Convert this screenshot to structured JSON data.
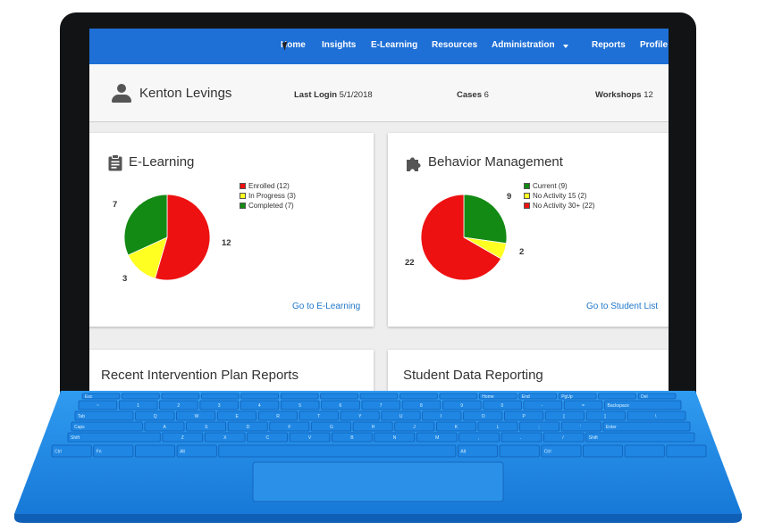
{
  "nav": {
    "items": [
      "Home",
      "Insights",
      "E-Learning",
      "Resources",
      "Administration",
      "Reports",
      "Profile"
    ]
  },
  "user": {
    "name": "Kenton Levings",
    "last_login_label": "Last Login",
    "last_login_value": "5/1/2018",
    "cases_label": "Cases",
    "cases_value": "6",
    "workshops_label": "Workshops",
    "workshops_value": "12"
  },
  "elearning": {
    "title": "E-Learning",
    "icon": "clipboard-icon",
    "legend": [
      "Enrolled (12)",
      "In Progress (3)",
      "Completed (7)"
    ],
    "link": "Go to E-Learning"
  },
  "behavior": {
    "title": "Behavior Management",
    "icon": "puzzle-icon",
    "legend": [
      "Current (9)",
      "No Activity 15 (2)",
      "No Activity 30+ (22)"
    ],
    "link": "Go to Student List"
  },
  "intervention": {
    "title": "Recent Intervention Plan Reports"
  },
  "student_data": {
    "title": "Student Data Reporting"
  },
  "colors": {
    "nav": "#1e6fd6",
    "red": "#ee1111",
    "yellow": "#ffff22",
    "green": "#138a13",
    "link": "#1f77c9",
    "keyboard": "#1e88e5"
  },
  "chart_data": [
    {
      "type": "pie",
      "categories": [
        "Enrolled",
        "In Progress",
        "Completed"
      ],
      "values": [
        12,
        3,
        7
      ],
      "colors": [
        "#ee1111",
        "#ffff22",
        "#138a13"
      ],
      "labels": [
        "12",
        "3",
        "7"
      ],
      "legend": "right"
    },
    {
      "type": "pie",
      "categories": [
        "Current",
        "No Activity 15",
        "No Activity 30+"
      ],
      "values": [
        9,
        2,
        22
      ],
      "colors": [
        "#138a13",
        "#ffff22",
        "#ee1111"
      ],
      "labels": [
        "9",
        "2",
        "22"
      ],
      "legend": "top-right"
    }
  ],
  "keyboard": {
    "fn_row": [
      "Esc",
      "",
      "",
      "",
      "",
      "",
      "",
      "",
      "",
      "",
      "Home",
      "End",
      "PgUp",
      "",
      "Del"
    ],
    "num_row": [
      "~",
      "1",
      "2",
      "3",
      "4",
      "5",
      "6",
      "7",
      "8",
      "9",
      "0",
      "-",
      "=",
      "Backspace"
    ],
    "top_row": [
      "Tab",
      "Q",
      "W",
      "E",
      "R",
      "T",
      "Y",
      "U",
      "I",
      "O",
      "P",
      "[",
      "]",
      "\\"
    ],
    "home_row": [
      "Caps",
      "A",
      "S",
      "D",
      "F",
      "G",
      "H",
      "J",
      "K",
      "L",
      ";",
      "'",
      "Enter"
    ],
    "shift_row": [
      "Shift",
      "Z",
      "X",
      "C",
      "V",
      "B",
      "N",
      "M",
      ",",
      ".",
      "/",
      "Shift"
    ],
    "bottom_row": [
      "Ctrl",
      "Fn",
      "",
      "Alt",
      "",
      "Alt",
      "",
      "Ctrl",
      "",
      "",
      ""
    ]
  }
}
